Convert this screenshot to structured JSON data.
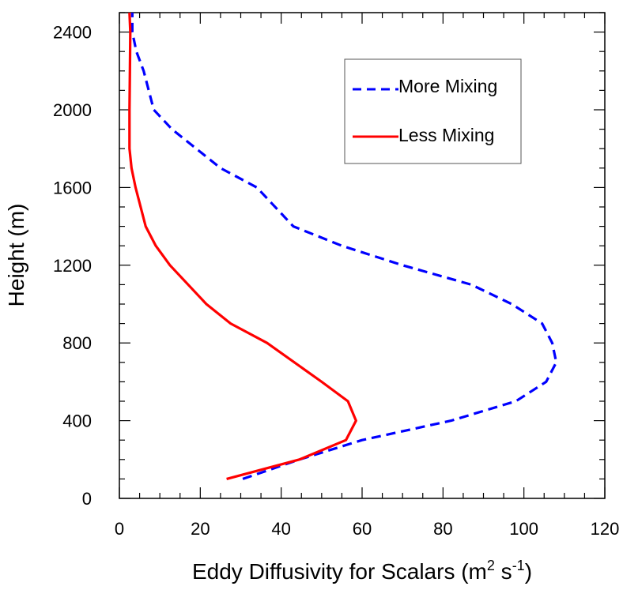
{
  "chart_data": {
    "type": "line",
    "xlabel": "Eddy Diffusivity for Scalars (m",
    "xlabel_sup1": "2",
    "xlabel_mid": " s",
    "xlabel_sup2": "-1",
    "xlabel_end": ")",
    "ylabel": "Height (m)",
    "xlim": [
      0,
      120
    ],
    "ylim": [
      0,
      2500
    ],
    "xticks": [
      0,
      20,
      40,
      60,
      80,
      100,
      120
    ],
    "yticks": [
      0,
      400,
      800,
      1200,
      1600,
      2000,
      2400
    ],
    "xtick_labels": [
      "0",
      "20",
      "40",
      "60",
      "80",
      "100",
      "120"
    ],
    "ytick_labels": [
      "0",
      "400",
      "800",
      "1200",
      "1600",
      "2000",
      "2400"
    ],
    "grid": false,
    "legend_position": "top-right",
    "series": [
      {
        "name": "More Mixing",
        "color": "#0000ff",
        "dash": "dashed",
        "x": [
          30.5,
          44.5,
          60,
          82,
          98,
          105.5,
          108,
          107,
          104.5,
          97,
          87,
          70,
          55,
          43,
          34,
          25,
          19,
          13,
          8.5,
          6,
          4.2,
          3.2,
          3.2
        ],
        "y": [
          100,
          200,
          300,
          400,
          500,
          600,
          700,
          800,
          900,
          1000,
          1100,
          1200,
          1300,
          1400,
          1600,
          1700,
          1800,
          1900,
          2000,
          2200,
          2300,
          2400,
          2500
        ]
      },
      {
        "name": "Less Mixing",
        "color": "#ff0000",
        "dash": "solid",
        "x": [
          26.5,
          44.5,
          56,
          58.5,
          56.5,
          50,
          36.5,
          27.5,
          21.5,
          12.5,
          9,
          6.5,
          4,
          3,
          2.5,
          2.5,
          2.6,
          2.7,
          2.5
        ],
        "y": [
          100,
          200,
          300,
          400,
          500,
          600,
          800,
          900,
          1000,
          1200,
          1300,
          1400,
          1600,
          1700,
          1800,
          2000,
          2200,
          2400,
          2500
        ]
      }
    ]
  }
}
